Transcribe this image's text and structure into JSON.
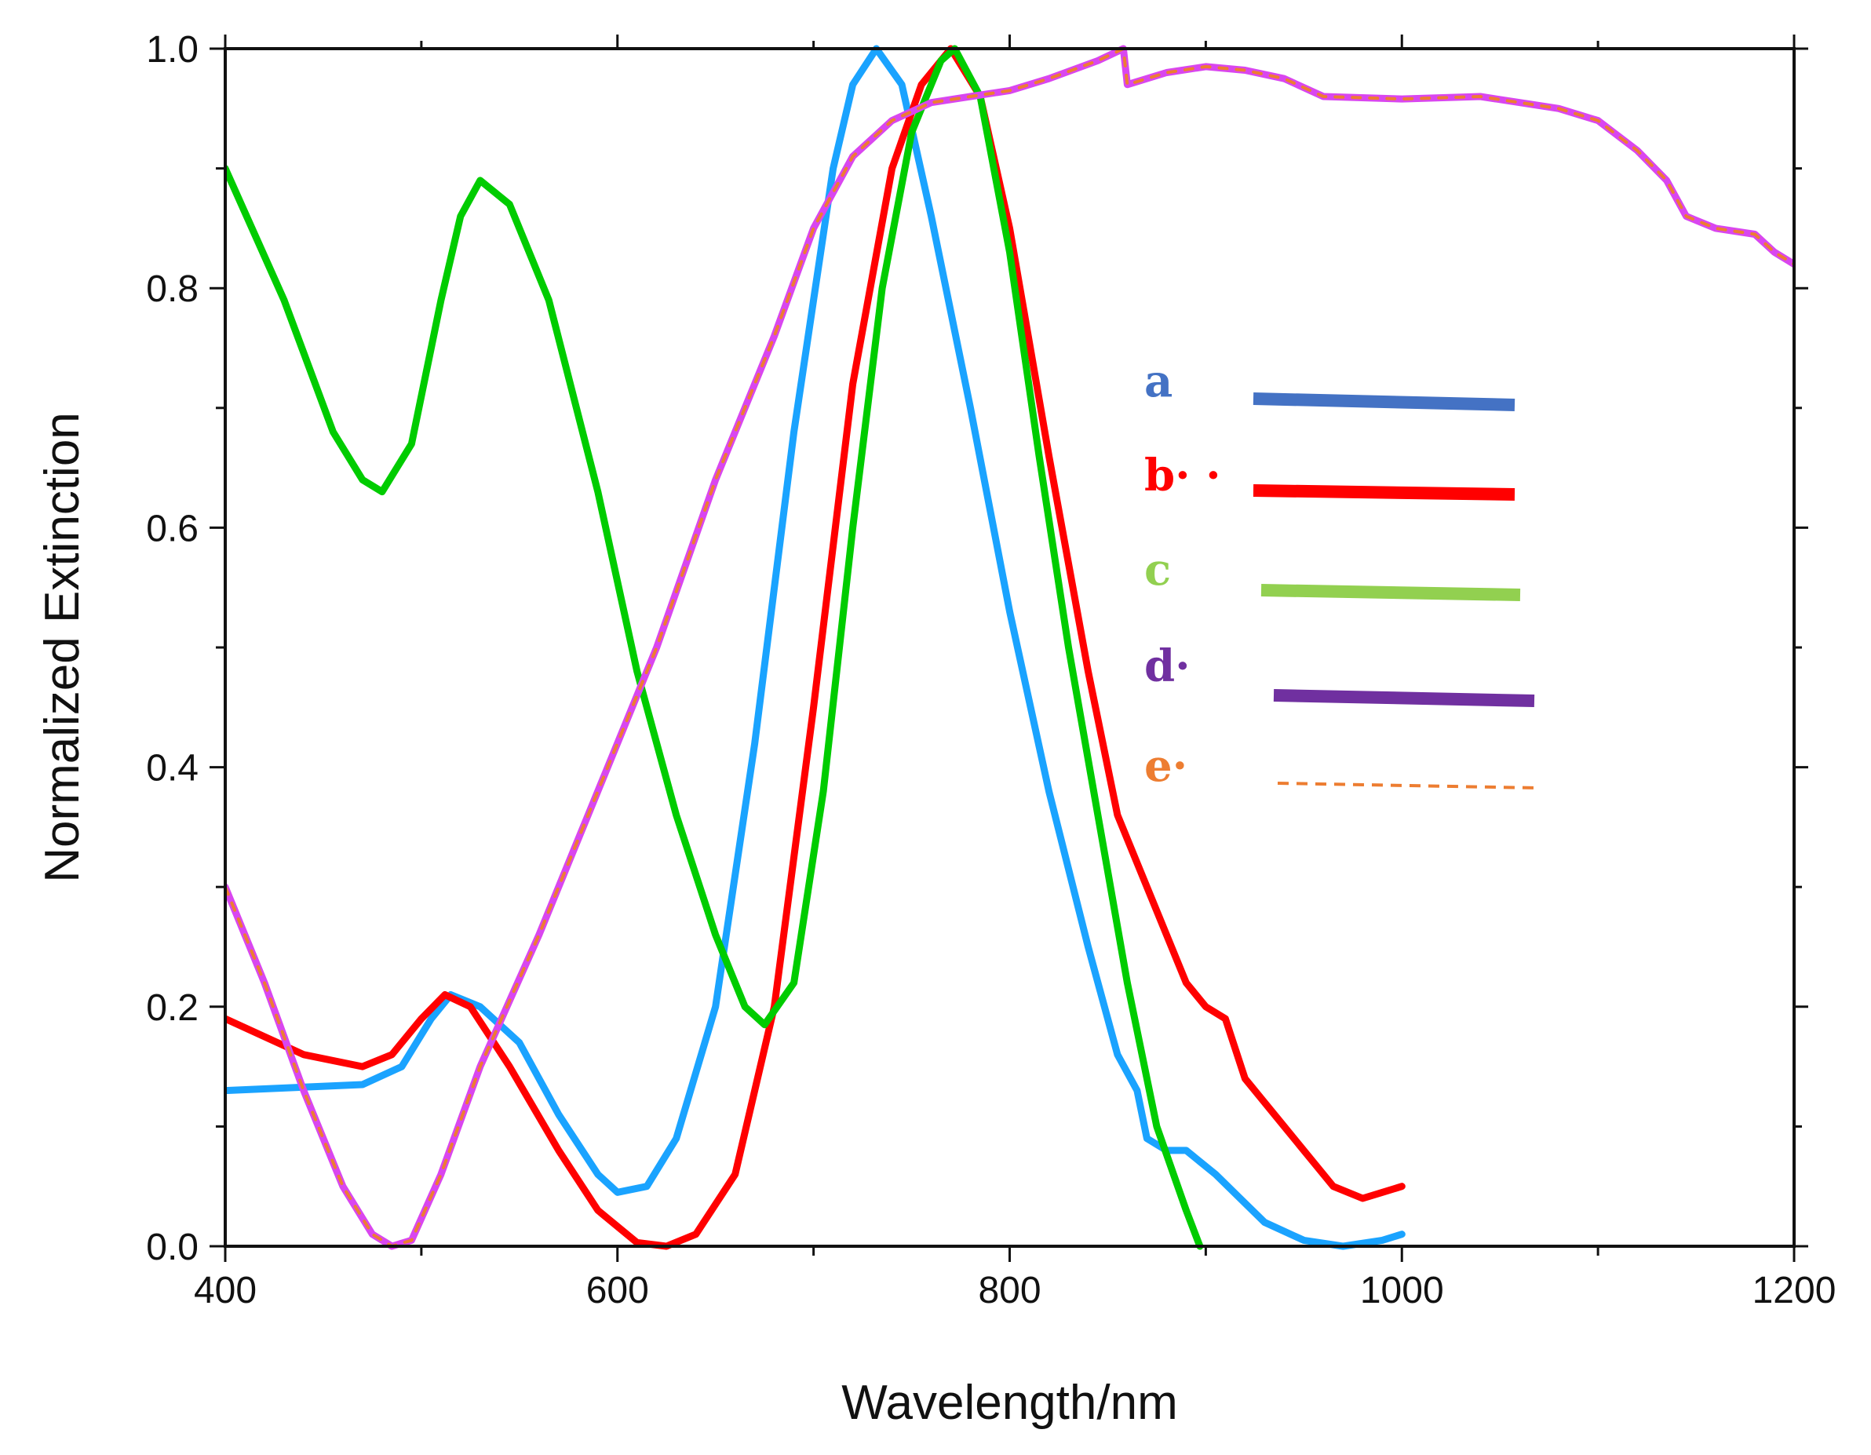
{
  "chart_data": {
    "type": "line",
    "title": "",
    "xlabel": "Wavelength/nm",
    "ylabel": "Normalized Extinction",
    "xlim": [
      400,
      1200
    ],
    "ylim": [
      0,
      1.0
    ],
    "x_ticks": [
      400,
      600,
      800,
      1000,
      1200
    ],
    "x_tick_labels": [
      "400",
      "600",
      "800",
      "1000",
      "1200"
    ],
    "x_minor_ticks": [
      500,
      700,
      900,
      1100
    ],
    "y_ticks": [
      0,
      0.2,
      0.4,
      0.6,
      0.8,
      1.0
    ],
    "y_tick_labels": [
      "0.0",
      "0.2",
      "0.4",
      "0.6",
      "0.8",
      "1.0"
    ],
    "y_minor_ticks": [
      0.1,
      0.3,
      0.5,
      0.7,
      0.9
    ],
    "grid": false,
    "legend_position": "right-middle",
    "legend": [
      {
        "letter": "a",
        "color": "#4472c4",
        "style": "solid"
      },
      {
        "letter": "b· ·",
        "color": "#ff0000",
        "style": "solid"
      },
      {
        "letter": "c",
        "color": "#92d050",
        "style": "solid"
      },
      {
        "letter": "d·",
        "color": "#7030a0",
        "style": "solid"
      },
      {
        "letter": "e·",
        "color": "#ed7d31",
        "style": "dashed"
      }
    ],
    "series": [
      {
        "name": "a",
        "color": "#1aa3ff",
        "style": "solid",
        "points": [
          [
            400,
            0.13
          ],
          [
            470,
            0.135
          ],
          [
            490,
            0.15
          ],
          [
            505,
            0.19
          ],
          [
            515,
            0.21
          ],
          [
            530,
            0.2
          ],
          [
            550,
            0.17
          ],
          [
            570,
            0.11
          ],
          [
            590,
            0.06
          ],
          [
            600,
            0.045
          ],
          [
            615,
            0.05
          ],
          [
            630,
            0.09
          ],
          [
            650,
            0.2
          ],
          [
            670,
            0.42
          ],
          [
            690,
            0.68
          ],
          [
            710,
            0.9
          ],
          [
            720,
            0.97
          ],
          [
            732,
            1.0
          ],
          [
            745,
            0.97
          ],
          [
            760,
            0.86
          ],
          [
            780,
            0.7
          ],
          [
            800,
            0.53
          ],
          [
            820,
            0.38
          ],
          [
            840,
            0.25
          ],
          [
            855,
            0.16
          ],
          [
            865,
            0.13
          ],
          [
            870,
            0.09
          ],
          [
            880,
            0.08
          ],
          [
            890,
            0.08
          ],
          [
            905,
            0.06
          ],
          [
            930,
            0.02
          ],
          [
            950,
            0.005
          ],
          [
            970,
            0.0
          ],
          [
            990,
            0.005
          ],
          [
            1000,
            0.01
          ]
        ]
      },
      {
        "name": "b",
        "color": "#ff0000",
        "style": "solid",
        "points": [
          [
            400,
            0.19
          ],
          [
            440,
            0.16
          ],
          [
            470,
            0.15
          ],
          [
            485,
            0.16
          ],
          [
            500,
            0.19
          ],
          [
            512,
            0.21
          ],
          [
            525,
            0.2
          ],
          [
            545,
            0.15
          ],
          [
            570,
            0.08
          ],
          [
            590,
            0.03
          ],
          [
            610,
            0.003
          ],
          [
            625,
            0.0
          ],
          [
            640,
            0.01
          ],
          [
            660,
            0.06
          ],
          [
            680,
            0.2
          ],
          [
            700,
            0.45
          ],
          [
            720,
            0.72
          ],
          [
            740,
            0.9
          ],
          [
            755,
            0.97
          ],
          [
            770,
            1.0
          ],
          [
            785,
            0.96
          ],
          [
            800,
            0.85
          ],
          [
            820,
            0.66
          ],
          [
            840,
            0.48
          ],
          [
            855,
            0.36
          ],
          [
            865,
            0.32
          ],
          [
            875,
            0.28
          ],
          [
            890,
            0.22
          ],
          [
            900,
            0.2
          ],
          [
            910,
            0.19
          ],
          [
            920,
            0.14
          ],
          [
            940,
            0.1
          ],
          [
            955,
            0.07
          ],
          [
            965,
            0.05
          ],
          [
            980,
            0.04
          ],
          [
            1000,
            0.05
          ]
        ]
      },
      {
        "name": "c",
        "color": "#00cc00",
        "style": "solid",
        "points": [
          [
            400,
            0.9
          ],
          [
            430,
            0.79
          ],
          [
            455,
            0.68
          ],
          [
            470,
            0.64
          ],
          [
            480,
            0.63
          ],
          [
            495,
            0.67
          ],
          [
            510,
            0.79
          ],
          [
            520,
            0.86
          ],
          [
            530,
            0.89
          ],
          [
            545,
            0.87
          ],
          [
            565,
            0.79
          ],
          [
            590,
            0.63
          ],
          [
            610,
            0.48
          ],
          [
            630,
            0.36
          ],
          [
            650,
            0.26
          ],
          [
            665,
            0.2
          ],
          [
            675,
            0.185
          ],
          [
            690,
            0.22
          ],
          [
            705,
            0.38
          ],
          [
            720,
            0.6
          ],
          [
            735,
            0.8
          ],
          [
            750,
            0.93
          ],
          [
            765,
            0.99
          ],
          [
            772,
            1.0
          ],
          [
            785,
            0.96
          ],
          [
            800,
            0.83
          ],
          [
            815,
            0.66
          ],
          [
            830,
            0.5
          ],
          [
            845,
            0.36
          ],
          [
            860,
            0.22
          ],
          [
            875,
            0.1
          ],
          [
            890,
            0.03
          ],
          [
            897,
            0.0
          ]
        ]
      },
      {
        "name": "d",
        "color": "#d946ef",
        "style": "solid",
        "points": [
          [
            400,
            0.3
          ],
          [
            420,
            0.22
          ],
          [
            440,
            0.13
          ],
          [
            460,
            0.05
          ],
          [
            475,
            0.01
          ],
          [
            485,
            0.0
          ],
          [
            495,
            0.005
          ],
          [
            510,
            0.06
          ],
          [
            530,
            0.15
          ],
          [
            560,
            0.26
          ],
          [
            590,
            0.38
          ],
          [
            620,
            0.5
          ],
          [
            650,
            0.64
          ],
          [
            680,
            0.76
          ],
          [
            700,
            0.85
          ],
          [
            720,
            0.91
          ],
          [
            740,
            0.94
          ],
          [
            760,
            0.955
          ],
          [
            780,
            0.96
          ],
          [
            800,
            0.965
          ],
          [
            820,
            0.975
          ],
          [
            845,
            0.99
          ],
          [
            858,
            1.0
          ],
          [
            860,
            0.97
          ],
          [
            880,
            0.98
          ],
          [
            900,
            0.985
          ],
          [
            920,
            0.982
          ],
          [
            940,
            0.975
          ],
          [
            960,
            0.96
          ],
          [
            1000,
            0.958
          ],
          [
            1040,
            0.96
          ],
          [
            1080,
            0.95
          ],
          [
            1100,
            0.94
          ],
          [
            1120,
            0.915
          ],
          [
            1135,
            0.89
          ],
          [
            1145,
            0.86
          ],
          [
            1160,
            0.85
          ],
          [
            1180,
            0.845
          ],
          [
            1190,
            0.83
          ],
          [
            1200,
            0.82
          ]
        ]
      },
      {
        "name": "e",
        "color": "#ed7d31",
        "style": "dashed",
        "points": [
          [
            400,
            0.3
          ],
          [
            420,
            0.22
          ],
          [
            440,
            0.13
          ],
          [
            460,
            0.05
          ],
          [
            475,
            0.01
          ],
          [
            485,
            0.0
          ],
          [
            495,
            0.005
          ],
          [
            510,
            0.06
          ],
          [
            530,
            0.15
          ],
          [
            560,
            0.26
          ],
          [
            590,
            0.38
          ],
          [
            620,
            0.5
          ],
          [
            650,
            0.64
          ],
          [
            680,
            0.76
          ],
          [
            700,
            0.85
          ],
          [
            720,
            0.91
          ],
          [
            740,
            0.94
          ],
          [
            760,
            0.955
          ],
          [
            780,
            0.96
          ],
          [
            800,
            0.965
          ],
          [
            820,
            0.975
          ],
          [
            845,
            0.99
          ],
          [
            858,
            1.0
          ],
          [
            860,
            0.97
          ],
          [
            880,
            0.98
          ],
          [
            900,
            0.985
          ],
          [
            920,
            0.982
          ],
          [
            940,
            0.975
          ],
          [
            960,
            0.96
          ],
          [
            1000,
            0.958
          ],
          [
            1040,
            0.96
          ],
          [
            1080,
            0.95
          ],
          [
            1100,
            0.94
          ],
          [
            1120,
            0.915
          ],
          [
            1135,
            0.89
          ],
          [
            1145,
            0.86
          ],
          [
            1160,
            0.85
          ],
          [
            1180,
            0.845
          ],
          [
            1190,
            0.83
          ],
          [
            1200,
            0.82
          ]
        ]
      }
    ]
  }
}
